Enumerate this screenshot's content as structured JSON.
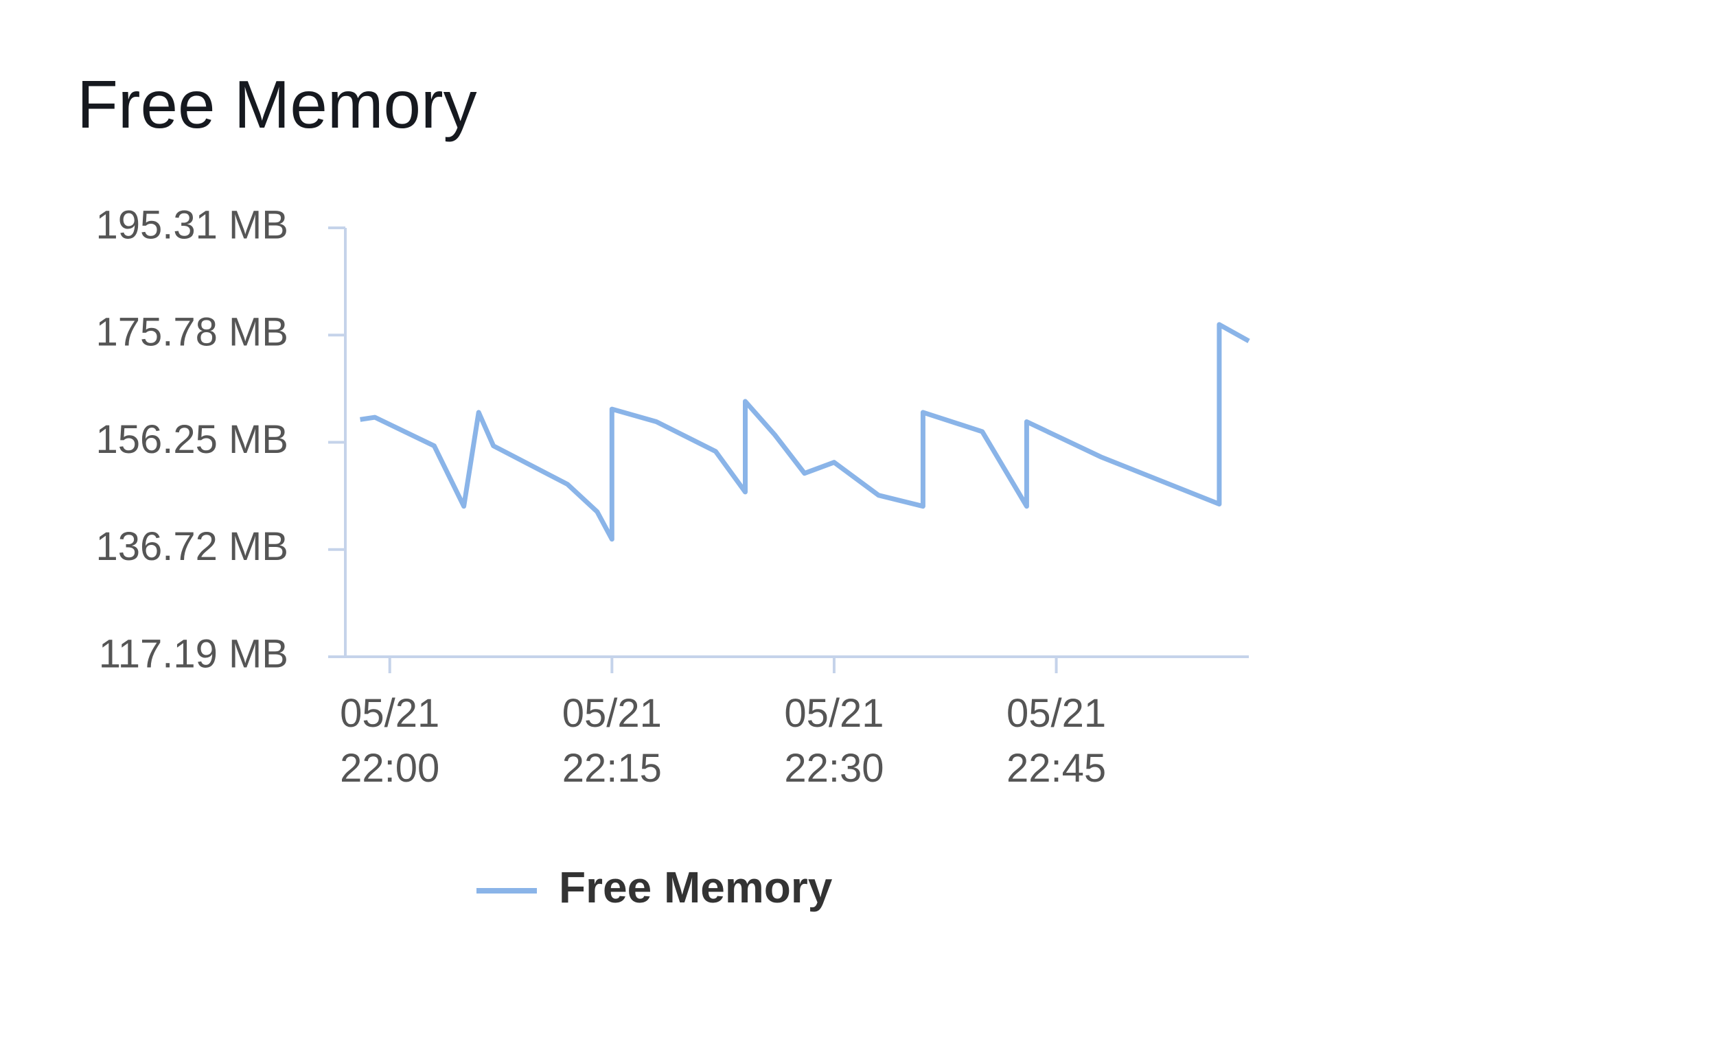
{
  "chart_data": {
    "type": "line",
    "title": "Free Memory",
    "x": [
      "05/21 21:58",
      "05/21 21:59",
      "05/21 22:03",
      "05/21 22:05",
      "05/21 22:06",
      "05/21 22:07",
      "05/21 22:12",
      "05/21 22:14",
      "05/21 22:15",
      "05/21 22:15",
      "05/21 22:18",
      "05/21 22:22",
      "05/21 22:24",
      "05/21 22:24",
      "05/21 22:26",
      "05/21 22:28",
      "05/21 22:30",
      "05/21 22:33",
      "05/21 22:36",
      "05/21 22:36",
      "05/21 22:40",
      "05/21 22:43",
      "05/21 22:43",
      "05/21 22:48",
      "05/21 22:56",
      "05/21 22:56",
      "05/21 22:58"
    ],
    "series": [
      {
        "name": "Free Memory",
        "color": "#8ab4e8",
        "values": [
          160.4,
          160.8,
          155.6,
          144.6,
          161.7,
          155.6,
          148.6,
          143.6,
          138.6,
          162.3,
          160.0,
          154.6,
          147.2,
          163.7,
          157.6,
          150.6,
          152.6,
          146.6,
          144.6,
          161.7,
          158.2,
          144.6,
          160.0,
          153.6,
          145.0,
          177.7,
          174.7
        ]
      }
    ],
    "xlim": [
      "05/21 21:57",
      "05/21 22:58"
    ],
    "xticks": [
      "05/21 22:00",
      "05/21 22:15",
      "05/21 22:30",
      "05/21 22:45"
    ],
    "ylim": [
      117.19,
      195.31
    ],
    "yticks": [
      {
        "value": 117.19,
        "label": "117.19 MB"
      },
      {
        "value": 136.72,
        "label": "136.72 MB"
      },
      {
        "value": 156.25,
        "label": "156.25 MB"
      },
      {
        "value": 175.78,
        "label": "175.78 MB"
      },
      {
        "value": 195.31,
        "label": "195.31 MB"
      }
    ],
    "grid": false
  }
}
